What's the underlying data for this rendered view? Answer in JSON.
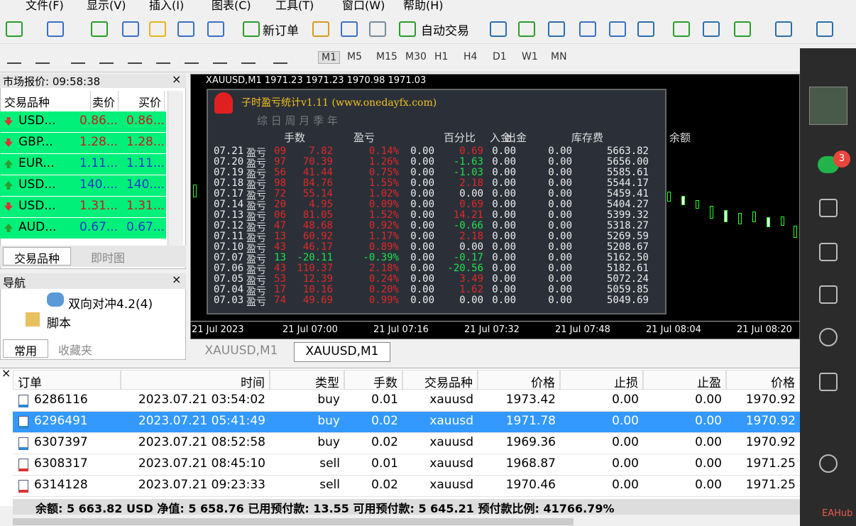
{
  "menu": [
    "文件(F)",
    "显示(V)",
    "插入(I)",
    "图表(C)",
    "工具(T)",
    "窗口(W)",
    "帮助(H)"
  ],
  "toolbar": {
    "new_order": "新订单",
    "auto_trading": "自动交易"
  },
  "timeframes": [
    "M1",
    "M5",
    "M15",
    "M30",
    "H1",
    "H4",
    "D1",
    "W1",
    "MN"
  ],
  "market_watch": {
    "title": "市场报价: 09:58:38",
    "headers": [
      "交易品种",
      "卖价",
      "买价"
    ],
    "rows": [
      {
        "symbol": "USD...",
        "bid": "0.86...",
        "ask": "0.86...",
        "dir": "down"
      },
      {
        "symbol": "GBP...",
        "bid": "1.28...",
        "ask": "1.28...",
        "dir": "down"
      },
      {
        "symbol": "EUR...",
        "bid": "1.11...",
        "ask": "1.11...",
        "dir": "up"
      },
      {
        "symbol": "USD...",
        "bid": "140....",
        "ask": "140....",
        "dir": "up"
      },
      {
        "symbol": "USD...",
        "bid": "1.31...",
        "ask": "1.31...",
        "dir": "down"
      },
      {
        "symbol": "AUD...",
        "bid": "0.67...",
        "ask": "0.67...",
        "dir": "up"
      }
    ],
    "tabs": [
      "交易品种",
      "即时图"
    ]
  },
  "navigator": {
    "title": "导航",
    "items": [
      "双向对冲4.2(4)",
      "脚本"
    ],
    "tabs": [
      "常用",
      "收藏夹"
    ]
  },
  "chart": {
    "header": "XAUUSD,M1  1971.23 1971.23 1970.98 1971.03",
    "x_labels": [
      "21 Jul 2023",
      "21 Jul 07:00",
      "21 Jul 07:16",
      "21 Jul 07:32",
      "21 Jul 07:48",
      "21 Jul 08:04",
      "21 Jul 08:20"
    ],
    "tabs": [
      "XAUUSD,M1",
      "XAUUSD,M1"
    ]
  },
  "indicator": {
    "title": "子时盈亏统计v1.11 (www.onedayfx.com)",
    "periods": "综 日 周 月 季 年",
    "headers": [
      "手数",
      "盈亏",
      "百分比",
      "入金",
      "出金",
      "库存费",
      "余额"
    ],
    "row_label": "盈亏",
    "rows": [
      [
        "07.21",
        "09",
        "7.82",
        "0.14%",
        "0.00",
        "0.69",
        "0.00",
        "0.00",
        "5663.82"
      ],
      [
        "07.20",
        "97",
        "70.39",
        "1.26%",
        "0.00",
        "-1.63",
        "0.00",
        "0.00",
        "5656.00"
      ],
      [
        "07.19",
        "56",
        "41.44",
        "0.75%",
        "0.00",
        "-1.03",
        "0.00",
        "0.00",
        "5585.61"
      ],
      [
        "07.18",
        "98",
        "84.76",
        "1.55%",
        "0.00",
        "2.18",
        "0.00",
        "0.00",
        "5544.17"
      ],
      [
        "07.17",
        "72",
        "55.14",
        "1.02%",
        "0.00",
        "0.00",
        "0.00",
        "0.00",
        "5459.41"
      ],
      [
        "07.14",
        "20",
        "4.95",
        "0.09%",
        "0.00",
        "0.69",
        "0.00",
        "0.00",
        "5404.27"
      ],
      [
        "07.13",
        "06",
        "81.05",
        "1.52%",
        "0.00",
        "14.21",
        "0.00",
        "0.00",
        "5399.32"
      ],
      [
        "07.12",
        "47",
        "48.68",
        "0.92%",
        "0.00",
        "-0.66",
        "0.00",
        "0.00",
        "5318.27"
      ],
      [
        "07.11",
        "13",
        "60.92",
        "1.17%",
        "0.00",
        "2.18",
        "0.00",
        "0.00",
        "5269.59"
      ],
      [
        "07.10",
        "43",
        "46.17",
        "0.89%",
        "0.00",
        "0.00",
        "0.00",
        "0.00",
        "5208.67"
      ],
      [
        "07.07",
        "13",
        "-20.11",
        "-0.39%",
        "0.00",
        "-0.17",
        "0.00",
        "0.00",
        "5162.50"
      ],
      [
        "07.06",
        "43",
        "110.37",
        "2.18%",
        "0.00",
        "-20.56",
        "0.00",
        "0.00",
        "5182.61"
      ],
      [
        "07.05",
        "53",
        "12.39",
        "0.24%",
        "0.00",
        "3.49",
        "0.00",
        "0.00",
        "5072.24"
      ],
      [
        "07.04",
        "17",
        "10.16",
        "0.20%",
        "0.00",
        "1.62",
        "0.00",
        "0.00",
        "5059.85"
      ],
      [
        "07.03",
        "74",
        "49.69",
        "0.99%",
        "0.00",
        "0.00",
        "0.00",
        "0.00",
        "5049.69"
      ]
    ]
  },
  "orders": {
    "headers": [
      "订单",
      "时间",
      "类型",
      "手数",
      "交易品种",
      "价格",
      "止损",
      "止盈",
      "价格"
    ],
    "selected_row": 1,
    "rows": [
      [
        "6286116",
        "2023.07.21 03:54:02",
        "buy",
        "0.01",
        "xauusd",
        "1973.42",
        "0.00",
        "0.00",
        "1970.92"
      ],
      [
        "6296491",
        "2023.07.21 05:41:49",
        "buy",
        "0.02",
        "xauusd",
        "1971.78",
        "0.00",
        "0.00",
        "1970.92"
      ],
      [
        "6307397",
        "2023.07.21 08:52:58",
        "buy",
        "0.02",
        "xauusd",
        "1969.36",
        "0.00",
        "0.00",
        "1970.92"
      ],
      [
        "6308317",
        "2023.07.21 08:45:10",
        "sell",
        "0.01",
        "xauusd",
        "1968.87",
        "0.00",
        "0.00",
        "1971.25"
      ],
      [
        "6314128",
        "2023.07.21 09:23:33",
        "sell",
        "0.02",
        "xauusd",
        "1970.46",
        "0.00",
        "0.00",
        "1971.25"
      ]
    ],
    "summary": "余额: 5 663.82 USD  净值: 5 658.76  已用预付款: 13.55  可用预付款: 5 645.21  预付款比例: 41766.79%"
  },
  "sidebar": {
    "badge": "3",
    "watermark": "EAHub"
  }
}
